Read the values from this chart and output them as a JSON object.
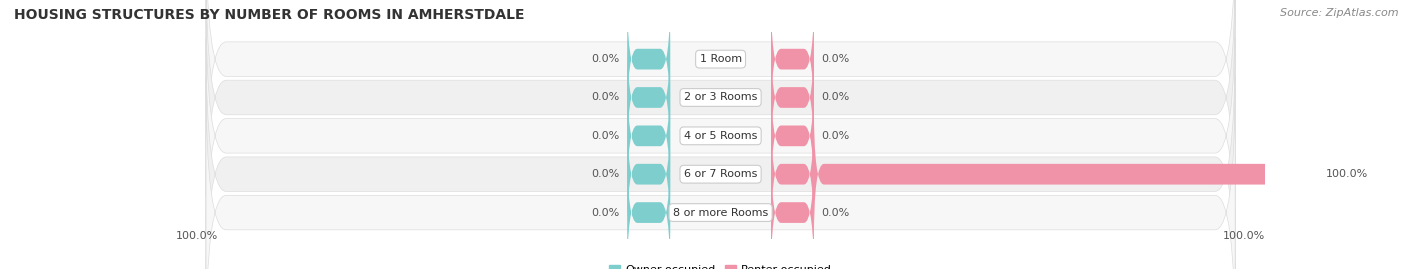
{
  "title": "HOUSING STRUCTURES BY NUMBER OF ROOMS IN AMHERSTDALE",
  "source": "Source: ZipAtlas.com",
  "categories": [
    "1 Room",
    "2 or 3 Rooms",
    "4 or 5 Rooms",
    "6 or 7 Rooms",
    "8 or more Rooms"
  ],
  "owner_values": [
    0.0,
    0.0,
    0.0,
    0.0,
    0.0
  ],
  "renter_values": [
    0.0,
    0.0,
    0.0,
    100.0,
    0.0
  ],
  "owner_color": "#7ecece",
  "renter_color": "#f093a8",
  "row_colors": [
    "#f7f7f7",
    "#f0f0f0",
    "#f7f7f7",
    "#f0f0f0",
    "#f7f7f7"
  ],
  "max_value": 100.0,
  "figsize": [
    14.06,
    2.69
  ],
  "dpi": 100,
  "title_fontsize": 10,
  "label_fontsize": 8,
  "cat_fontsize": 8,
  "legend_fontsize": 8,
  "source_fontsize": 8
}
